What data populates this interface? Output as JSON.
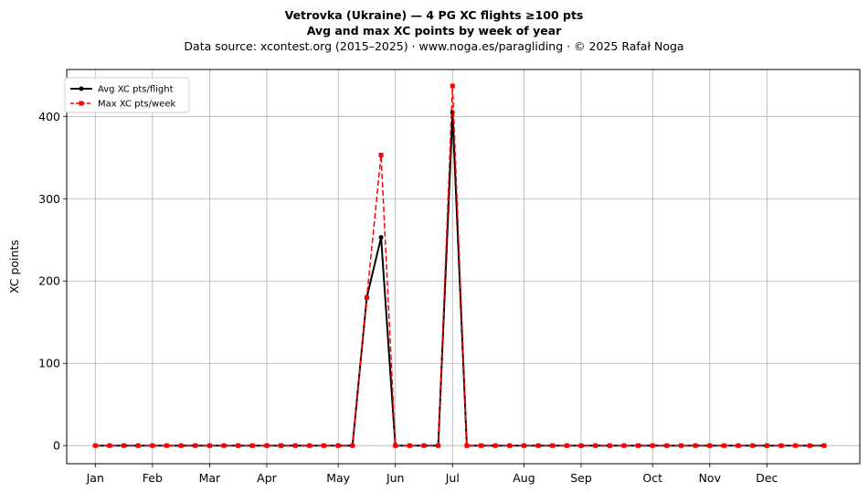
{
  "chart_data": {
    "type": "line",
    "title": "Vetrovka (Ukraine)  —  4 PG XC flights ≥100 pts",
    "subtitle": "Avg and max XC points by week of year",
    "source_line": "Data source: xcontest.org (2015–2025)  ·  www.noga.es/paragliding  ·  © 2025 Rafał Noga",
    "xlabel": "",
    "ylabel": "XC points",
    "ylim": [
      -22,
      457
    ],
    "y_ticks": [
      0,
      100,
      200,
      300,
      400
    ],
    "x_range": [
      -1,
      54.5
    ],
    "month_ticks": [
      {
        "label": "Jan",
        "week": 1
      },
      {
        "label": "Feb",
        "week": 5
      },
      {
        "label": "Mar",
        "week": 9
      },
      {
        "label": "Apr",
        "week": 13
      },
      {
        "label": "May",
        "week": 18
      },
      {
        "label": "Jun",
        "week": 22
      },
      {
        "label": "Jul",
        "week": 26
      },
      {
        "label": "Aug",
        "week": 31
      },
      {
        "label": "Sep",
        "week": 35
      },
      {
        "label": "Oct",
        "week": 40
      },
      {
        "label": "Nov",
        "week": 44
      },
      {
        "label": "Dec",
        "week": 48
      }
    ],
    "grid": true,
    "legend_position": "top-left",
    "x": [
      1,
      2,
      3,
      4,
      5,
      6,
      7,
      8,
      9,
      10,
      11,
      12,
      13,
      14,
      15,
      16,
      17,
      18,
      19,
      20,
      21,
      22,
      23,
      24,
      25,
      26,
      27,
      28,
      29,
      30,
      31,
      32,
      33,
      34,
      35,
      36,
      37,
      38,
      39,
      40,
      41,
      42,
      43,
      44,
      45,
      46,
      47,
      48,
      49,
      50,
      51,
      52
    ],
    "series": [
      {
        "name": "Avg XC pts/flight",
        "color": "#000000",
        "style": "solid",
        "marker": "circle",
        "values": [
          0,
          0,
          0,
          0,
          0,
          0,
          0,
          0,
          0,
          0,
          0,
          0,
          0,
          0,
          0,
          0,
          0,
          0,
          0,
          180,
          253,
          0,
          0,
          0,
          0,
          405,
          0,
          0,
          0,
          0,
          0,
          0,
          0,
          0,
          0,
          0,
          0,
          0,
          0,
          0,
          0,
          0,
          0,
          0,
          0,
          0,
          0,
          0,
          0,
          0,
          0,
          0
        ]
      },
      {
        "name": "Max XC pts/week",
        "color": "#ff0000",
        "style": "dashed",
        "marker": "square",
        "values": [
          0,
          0,
          0,
          0,
          0,
          0,
          0,
          0,
          0,
          0,
          0,
          0,
          0,
          0,
          0,
          0,
          0,
          0,
          0,
          180,
          353,
          0,
          0,
          0,
          0,
          437,
          0,
          0,
          0,
          0,
          0,
          0,
          0,
          0,
          0,
          0,
          0,
          0,
          0,
          0,
          0,
          0,
          0,
          0,
          0,
          0,
          0,
          0,
          0,
          0,
          0,
          0
        ]
      }
    ]
  }
}
